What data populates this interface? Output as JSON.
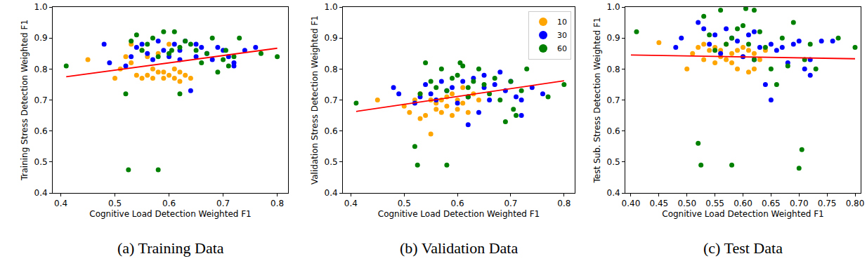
{
  "chart_data": [
    {
      "type": "scatter",
      "caption": "(a) Training Data",
      "x_label": "Cognitive Load Detection Weighted F1",
      "y_label": "Training Stress Detection Weighted F1",
      "xlim": [
        0.385,
        0.82
      ],
      "ylim": [
        0.4,
        1.0
      ],
      "xticks": [
        0.4,
        0.5,
        0.6,
        0.7,
        0.8
      ],
      "yticks": [
        0.4,
        0.5,
        0.6,
        0.7,
        0.8,
        0.9,
        {
          "value": 1.0,
          "label": "1.0"
        }
      ],
      "grid": false,
      "series": [
        {
          "name": "10",
          "color": "#ffa500",
          "marker": "circle",
          "x": [
            0.45,
            0.5,
            0.51,
            0.52,
            0.53,
            0.53,
            0.54,
            0.55,
            0.55,
            0.56,
            0.56,
            0.57,
            0.57,
            0.58,
            0.58,
            0.59,
            0.59,
            0.6,
            0.6,
            0.61,
            0.61,
            0.62,
            0.62,
            0.63,
            0.64
          ],
          "values": [
            0.83,
            0.77,
            0.8,
            0.84,
            0.82,
            0.88,
            0.78,
            0.77,
            0.86,
            0.78,
            0.84,
            0.77,
            0.8,
            0.79,
            0.85,
            0.77,
            0.79,
            0.78,
            0.88,
            0.8,
            0.77,
            0.79,
            0.76,
            0.78,
            0.77
          ]
        },
        {
          "name": "30",
          "color": "#0000ff",
          "marker": "circle",
          "x": [
            0.48,
            0.49,
            0.52,
            0.53,
            0.54,
            0.55,
            0.56,
            0.57,
            0.58,
            0.59,
            0.6,
            0.61,
            0.62,
            0.62,
            0.63,
            0.64,
            0.65,
            0.65,
            0.66,
            0.67,
            0.68,
            0.69,
            0.7,
            0.71,
            0.72,
            0.74,
            0.76,
            0.72
          ],
          "values": [
            0.88,
            0.82,
            0.81,
            0.84,
            0.87,
            0.88,
            0.85,
            0.83,
            0.89,
            0.86,
            0.84,
            0.88,
            0.86,
            0.83,
            0.89,
            0.73,
            0.88,
            0.84,
            0.87,
            0.85,
            0.83,
            0.87,
            0.86,
            0.84,
            0.82,
            0.86,
            0.87,
            0.81
          ]
        },
        {
          "name": "60",
          "color": "#008000",
          "marker": "circle",
          "x": [
            0.41,
            0.52,
            0.525,
            0.53,
            0.54,
            0.55,
            0.56,
            0.57,
            0.58,
            0.58,
            0.59,
            0.6,
            0.605,
            0.61,
            0.62,
            0.62,
            0.63,
            0.64,
            0.65,
            0.66,
            0.67,
            0.68,
            0.69,
            0.7,
            0.705,
            0.71,
            0.72,
            0.73,
            0.77,
            0.8
          ],
          "values": [
            0.81,
            0.72,
            0.475,
            0.89,
            0.91,
            0.86,
            0.88,
            0.9,
            0.475,
            0.84,
            0.92,
            0.85,
            0.86,
            0.92,
            0.72,
            0.87,
            0.89,
            0.88,
            0.86,
            0.82,
            0.85,
            0.9,
            0.79,
            0.83,
            0.86,
            0.81,
            0.84,
            0.9,
            0.85,
            0.84
          ]
        },
        {
          "type": "line",
          "color": "#ff0000",
          "line_style": "solid",
          "x": [
            0.41,
            0.8
          ],
          "values": [
            0.775,
            0.867
          ]
        }
      ]
    },
    {
      "type": "scatter",
      "caption": "(b) Validation Data",
      "x_label": "Cognitive Load Detection Weighted F1",
      "y_label": "Validation Stress Detection Weighted F1",
      "xlim": [
        0.385,
        0.82
      ],
      "ylim": [
        0.4,
        1.0
      ],
      "xticks": [
        0.4,
        0.5,
        0.6,
        0.7,
        0.8
      ],
      "yticks": [
        0.4,
        0.5,
        0.6,
        0.7,
        0.8,
        0.9,
        {
          "value": 1.0,
          "label": "1.0"
        }
      ],
      "grid": false,
      "legend": "upper right",
      "series": [
        {
          "name": "10",
          "color": "#ffa500",
          "marker": "circle",
          "x": [
            0.45,
            0.5,
            0.51,
            0.52,
            0.53,
            0.53,
            0.54,
            0.55,
            0.55,
            0.56,
            0.56,
            0.57,
            0.57,
            0.58,
            0.58,
            0.59,
            0.59,
            0.6,
            0.6,
            0.61,
            0.61,
            0.62,
            0.62,
            0.63,
            0.64
          ],
          "values": [
            0.7,
            0.68,
            0.66,
            0.7,
            0.72,
            0.64,
            0.65,
            0.59,
            0.7,
            0.67,
            0.69,
            0.66,
            0.7,
            0.71,
            0.68,
            0.65,
            0.72,
            0.67,
            0.7,
            0.74,
            0.69,
            0.66,
            0.71,
            0.72,
            0.7
          ]
        },
        {
          "name": "30",
          "color": "#0000ff",
          "marker": "circle",
          "x": [
            0.48,
            0.49,
            0.52,
            0.53,
            0.54,
            0.55,
            0.56,
            0.57,
            0.58,
            0.59,
            0.6,
            0.61,
            0.62,
            0.62,
            0.63,
            0.64,
            0.65,
            0.65,
            0.66,
            0.67,
            0.68,
            0.69,
            0.7,
            0.71,
            0.72,
            0.74,
            0.76,
            0.72
          ],
          "values": [
            0.74,
            0.72,
            0.69,
            0.71,
            0.75,
            0.72,
            0.7,
            0.76,
            0.73,
            0.74,
            0.69,
            0.76,
            0.62,
            0.71,
            0.77,
            0.66,
            0.74,
            0.78,
            0.7,
            0.75,
            0.79,
            0.73,
            0.76,
            0.71,
            0.7,
            0.74,
            0.72,
            0.65
          ]
        },
        {
          "name": "60",
          "color": "#008000",
          "marker": "circle",
          "x": [
            0.41,
            0.52,
            0.525,
            0.53,
            0.54,
            0.55,
            0.56,
            0.57,
            0.58,
            0.58,
            0.59,
            0.6,
            0.605,
            0.61,
            0.62,
            0.62,
            0.63,
            0.64,
            0.65,
            0.66,
            0.67,
            0.68,
            0.69,
            0.7,
            0.705,
            0.71,
            0.72,
            0.73,
            0.77,
            0.8
          ],
          "values": [
            0.69,
            0.55,
            0.49,
            0.72,
            0.82,
            0.76,
            0.74,
            0.8,
            0.49,
            0.73,
            0.77,
            0.78,
            0.82,
            0.81,
            0.71,
            0.74,
            0.76,
            0.8,
            0.75,
            0.72,
            0.77,
            0.7,
            0.63,
            0.76,
            0.67,
            0.65,
            0.73,
            0.8,
            0.71,
            0.75
          ]
        },
        {
          "type": "line",
          "color": "#ff0000",
          "line_style": "solid",
          "x": [
            0.41,
            0.8
          ],
          "values": [
            0.663,
            0.762
          ]
        }
      ]
    },
    {
      "type": "scatter",
      "caption": "(c) Test Data",
      "x_label": "Cognitive Load Detection Weighted F1",
      "y_label": "Test Sub. Stress Detection Weighted F1",
      "xlim": [
        0.39,
        0.81
      ],
      "ylim": [
        0.4,
        1.0
      ],
      "xticks": [
        {
          "value": 0.4,
          "label": "0.40"
        },
        0.45,
        {
          "value": 0.5,
          "label": "0.50"
        },
        0.55,
        {
          "value": 0.6,
          "label": "0.60"
        },
        0.65,
        {
          "value": 0.7,
          "label": "0.70"
        },
        0.75,
        {
          "value": 0.8,
          "label": "0.80"
        }
      ],
      "yticks": [
        0.4,
        0.5,
        0.6,
        0.7,
        0.8,
        0.9,
        {
          "value": 1.0,
          "label": "1.0"
        }
      ],
      "grid": false,
      "series": [
        {
          "name": "10",
          "color": "#ffa500",
          "marker": "circle",
          "x": [
            0.45,
            0.5,
            0.51,
            0.52,
            0.53,
            0.53,
            0.54,
            0.55,
            0.55,
            0.56,
            0.56,
            0.57,
            0.57,
            0.58,
            0.58,
            0.59,
            0.59,
            0.6,
            0.6,
            0.61,
            0.61,
            0.62,
            0.62,
            0.63,
            0.64
          ],
          "values": [
            0.885,
            0.8,
            0.85,
            0.87,
            0.88,
            0.83,
            0.86,
            0.82,
            0.87,
            0.84,
            0.86,
            0.88,
            0.83,
            0.85,
            0.82,
            0.86,
            0.8,
            0.87,
            0.84,
            0.79,
            0.86,
            0.85,
            0.8,
            0.83,
            0.86
          ]
        },
        {
          "name": "30",
          "color": "#0000ff",
          "marker": "circle",
          "x": [
            0.48,
            0.49,
            0.52,
            0.53,
            0.54,
            0.55,
            0.56,
            0.57,
            0.58,
            0.59,
            0.6,
            0.61,
            0.62,
            0.62,
            0.63,
            0.64,
            0.65,
            0.65,
            0.66,
            0.67,
            0.68,
            0.69,
            0.7,
            0.71,
            0.72,
            0.74,
            0.76,
            0.72
          ],
          "values": [
            0.87,
            0.9,
            0.95,
            0.93,
            0.88,
            0.91,
            0.85,
            0.93,
            0.9,
            0.89,
            0.84,
            0.91,
            0.92,
            0.83,
            0.87,
            0.75,
            0.88,
            0.7,
            0.86,
            0.87,
            0.82,
            0.88,
            0.89,
            0.8,
            0.78,
            0.89,
            0.89,
            0.83
          ]
        },
        {
          "name": "60",
          "color": "#008000",
          "marker": "circle",
          "x": [
            0.41,
            0.52,
            0.525,
            0.53,
            0.54,
            0.55,
            0.56,
            0.57,
            0.58,
            0.58,
            0.59,
            0.6,
            0.605,
            0.61,
            0.62,
            0.62,
            0.63,
            0.64,
            0.65,
            0.66,
            0.67,
            0.68,
            0.69,
            0.7,
            0.705,
            0.71,
            0.72,
            0.73,
            0.77,
            0.8
          ],
          "values": [
            0.92,
            0.56,
            0.49,
            0.97,
            0.91,
            0.86,
            0.99,
            0.88,
            0.49,
            0.9,
            0.93,
            0.94,
            0.995,
            0.88,
            0.83,
            0.99,
            0.92,
            0.87,
            0.8,
            0.75,
            0.9,
            0.81,
            0.95,
            0.48,
            0.54,
            0.83,
            0.88,
            0.8,
            0.9,
            0.87
          ]
        },
        {
          "type": "line",
          "color": "#ff0000",
          "line_style": "solid",
          "x": [
            0.4,
            0.8
          ],
          "values": [
            0.845,
            0.833
          ]
        }
      ]
    }
  ]
}
